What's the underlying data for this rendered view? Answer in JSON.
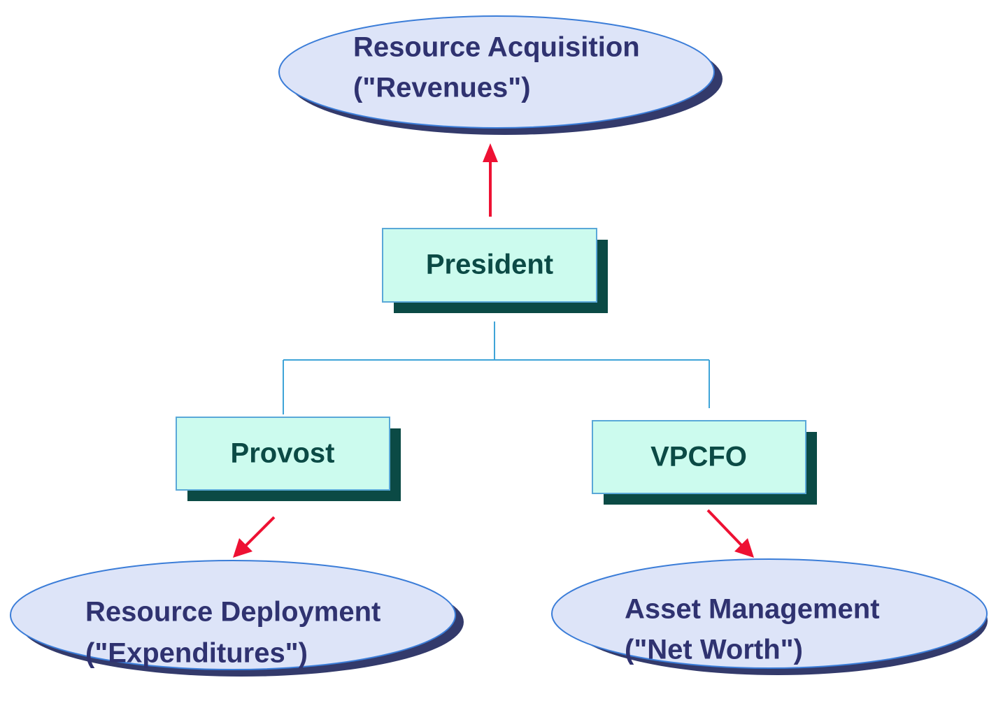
{
  "nodes": [
    {
      "lines": [
        "Resource Acquisition",
        "(\"Revenues\")"
      ]
    },
    {
      "label": "President"
    },
    {
      "label": "Provost"
    },
    {
      "label": "VPCFO"
    },
    {
      "lines": [
        "Resource Deployment",
        "(\"Expenditures\")"
      ]
    },
    {
      "lines": [
        "Asset Management",
        "(\"Net Worth\")"
      ]
    }
  ]
}
